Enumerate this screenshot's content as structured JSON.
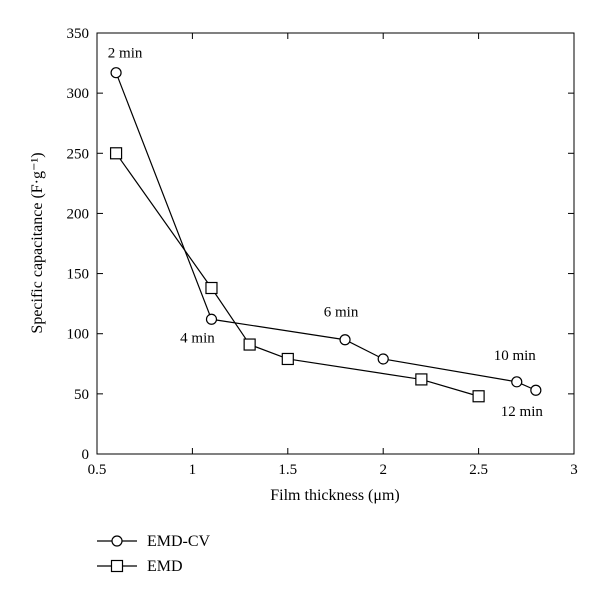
{
  "chart_data": {
    "type": "line",
    "xlabel": "Film thickness (μm)",
    "ylabel": "Specific capacitance (F·g⁻¹)",
    "xlim": [
      0.5,
      3
    ],
    "ylim": [
      0,
      350
    ],
    "xticks": [
      "0.5",
      "1",
      "1.5",
      "2",
      "2.5",
      "3"
    ],
    "yticks": [
      "0",
      "50",
      "100",
      "150",
      "200",
      "250",
      "300",
      "350"
    ],
    "legend_position": "bottom-left",
    "grid": false,
    "series": [
      {
        "name": "EMD-CV",
        "marker": "circle",
        "x": [
          0.6,
          1.1,
          1.8,
          2.0,
          2.7,
          2.8
        ],
        "y": [
          317,
          112,
          95,
          79,
          60,
          53
        ]
      },
      {
        "name": "EMD",
        "marker": "square",
        "x": [
          0.6,
          1.1,
          1.3,
          1.5,
          2.2,
          2.5
        ],
        "y": [
          250,
          138,
          91,
          79,
          62,
          48
        ]
      }
    ],
    "annotations": [
      {
        "text": "2 min",
        "x": 0.6,
        "y": 317
      },
      {
        "text": "4 min",
        "x": 1.1,
        "y": 112
      },
      {
        "text": "6 min",
        "x": 1.8,
        "y": 95
      },
      {
        "text": "10 min",
        "x": 2.7,
        "y": 60
      },
      {
        "text": "12 min",
        "x": 2.8,
        "y": 53
      }
    ]
  }
}
